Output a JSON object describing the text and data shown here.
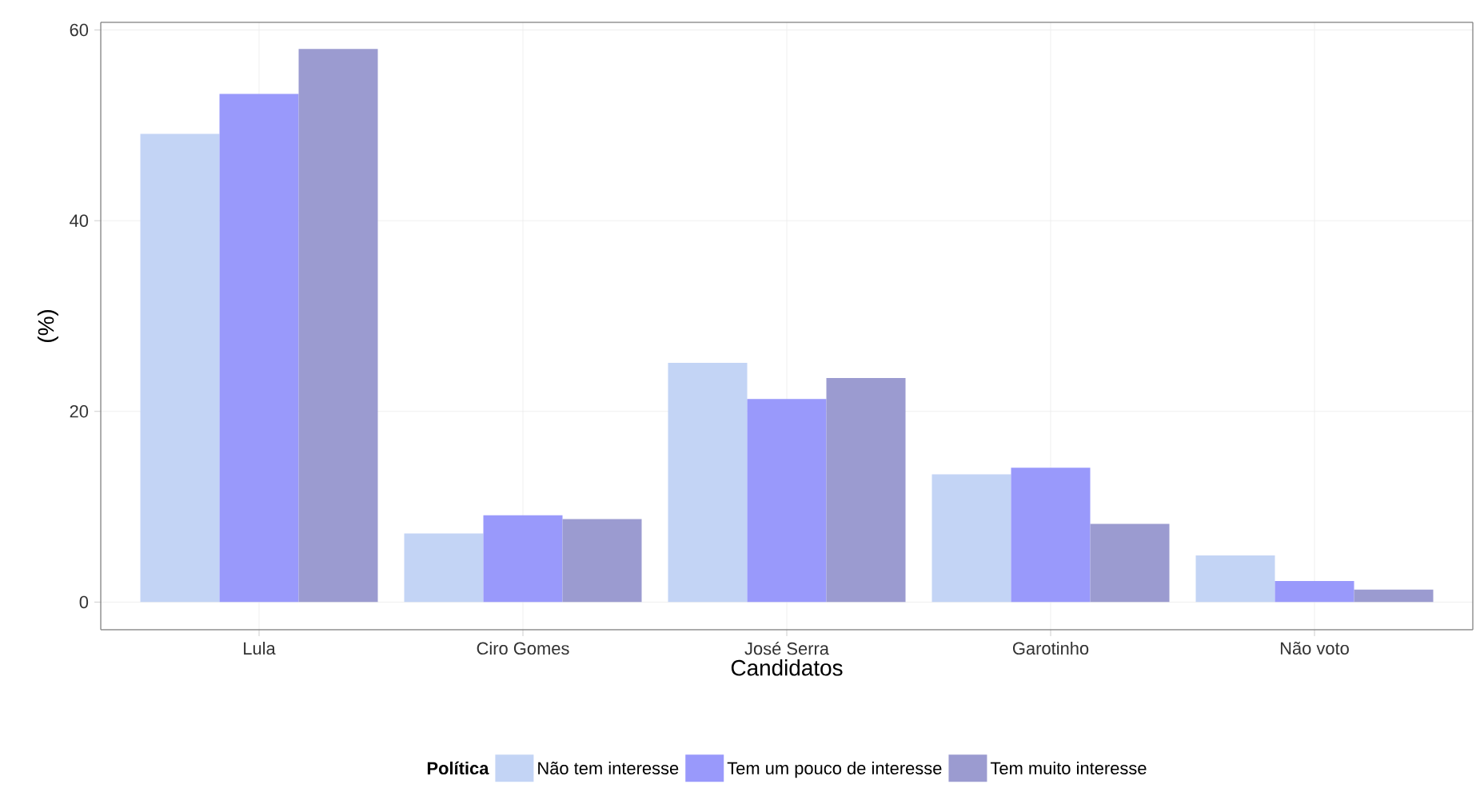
{
  "chart_data": {
    "type": "bar",
    "xlabel": "Candidatos",
    "ylabel": "(%)",
    "legend_title": "Política",
    "categories": [
      "Lula",
      "Ciro Gomes",
      "José Serra",
      "Garotinho",
      "Não voto"
    ],
    "series": [
      {
        "name": "Não tem interesse",
        "color": "#c3d4f5",
        "values": [
          49.1,
          7.2,
          25.1,
          13.4,
          4.9
        ]
      },
      {
        "name": "Tem um pouco de interesse",
        "color": "#9999fb",
        "values": [
          53.3,
          9.1,
          21.3,
          14.1,
          2.2
        ]
      },
      {
        "name": "Tem muito interesse",
        "color": "#9b9bd0",
        "values": [
          58.0,
          8.7,
          23.5,
          8.2,
          1.3
        ]
      }
    ],
    "ylim": [
      -2.9,
      60.8
    ],
    "yticks": [
      0,
      20,
      40,
      60
    ],
    "grid": true,
    "legend": "bottom"
  }
}
